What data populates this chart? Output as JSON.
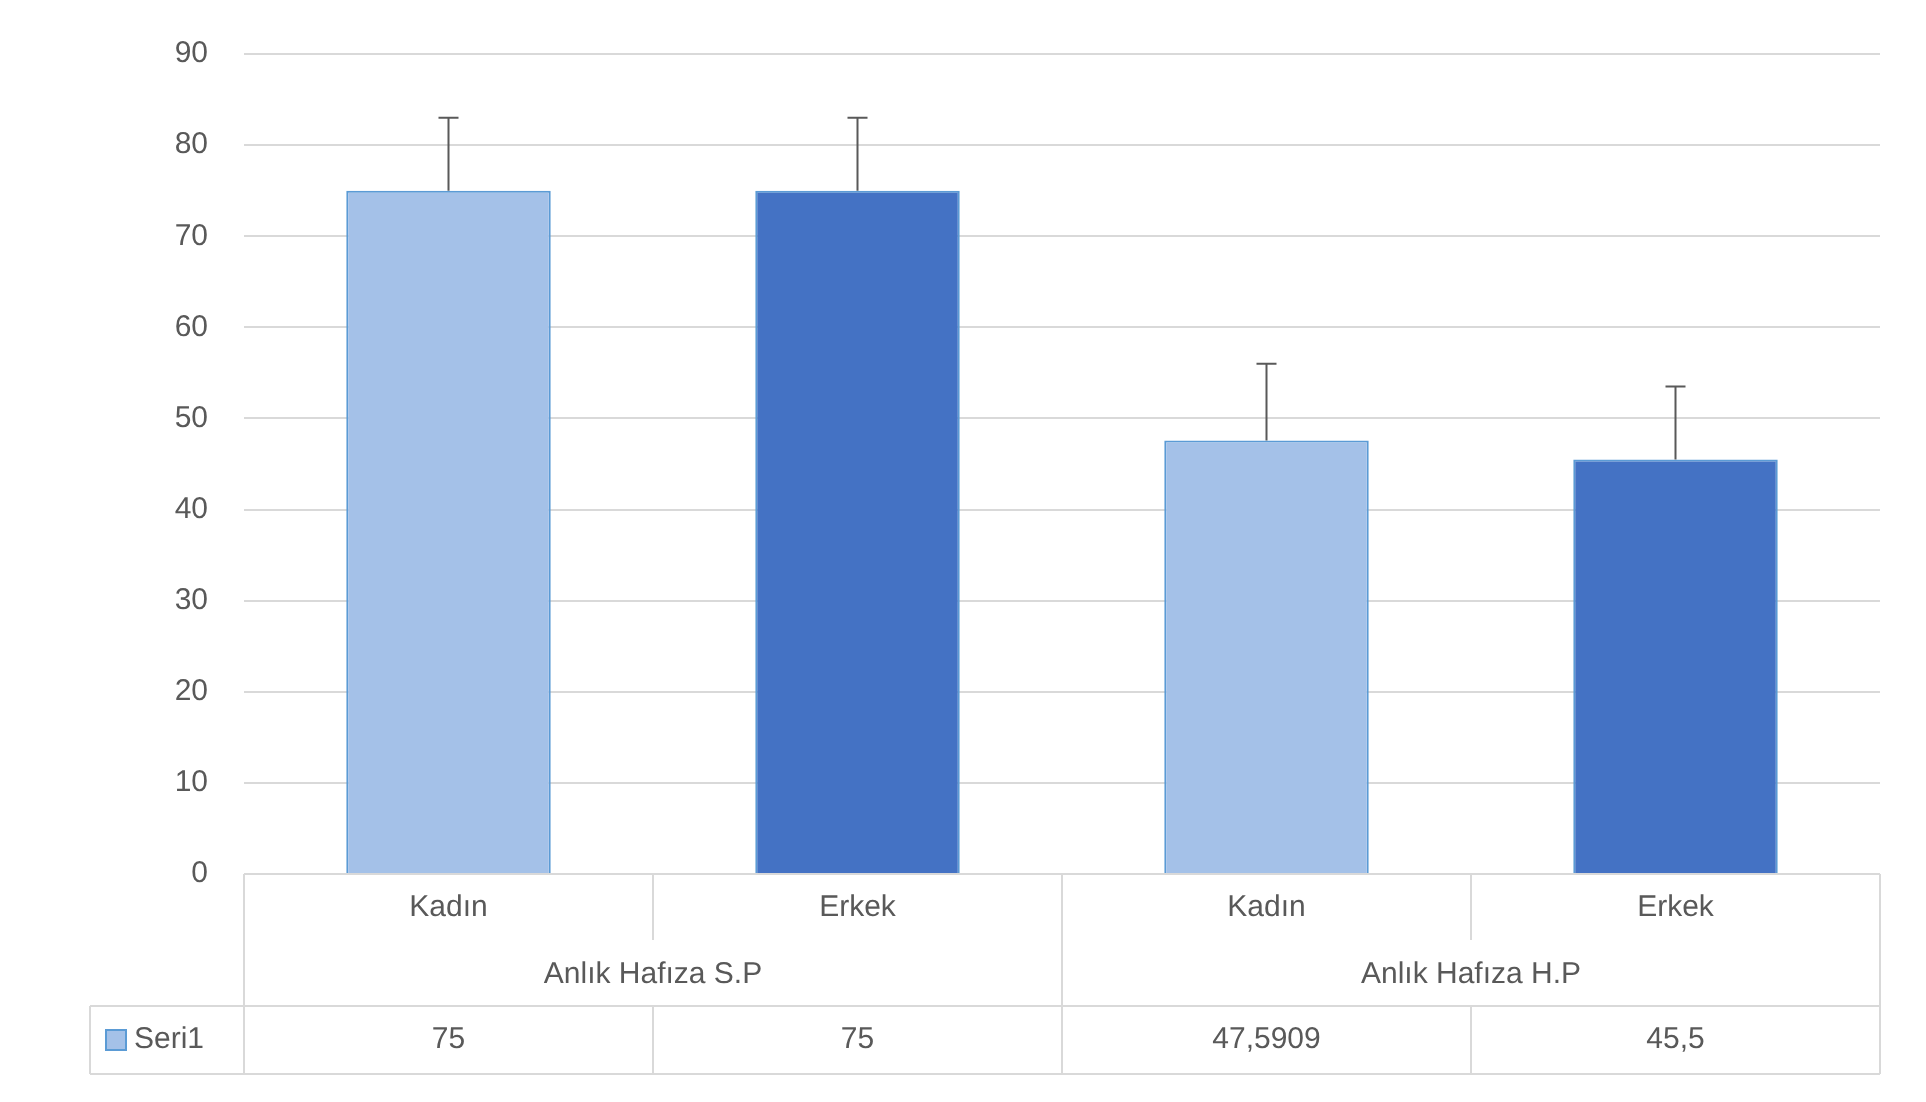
{
  "chart_data": {
    "type": "bar",
    "categories": [
      "Kadın",
      "Erkek",
      "Kadın",
      "Erkek"
    ],
    "series": [
      {
        "name": "Seri1",
        "colors": [
          "#a4c1e8",
          "#4472c4",
          "#a4c1e8",
          "#4472c4"
        ],
        "values": [
          75,
          75,
          47.5909,
          45.5
        ],
        "errors": [
          [
            75,
            83
          ],
          [
            75,
            83
          ],
          [
            47.5909,
            56
          ],
          [
            45.5,
            53.5
          ]
        ],
        "value_labels": [
          "75",
          "75",
          "47,5909",
          "45,5"
        ]
      }
    ],
    "annotations": [
      "Anlık Hafıza S.P",
      "Anlık Hafıza H.P"
    ],
    "ylim": [
      0,
      90
    ],
    "yticks": [
      0,
      10,
      20,
      30,
      40,
      50,
      60,
      70,
      80,
      90
    ],
    "grid": "y",
    "legend": "bottom left"
  }
}
